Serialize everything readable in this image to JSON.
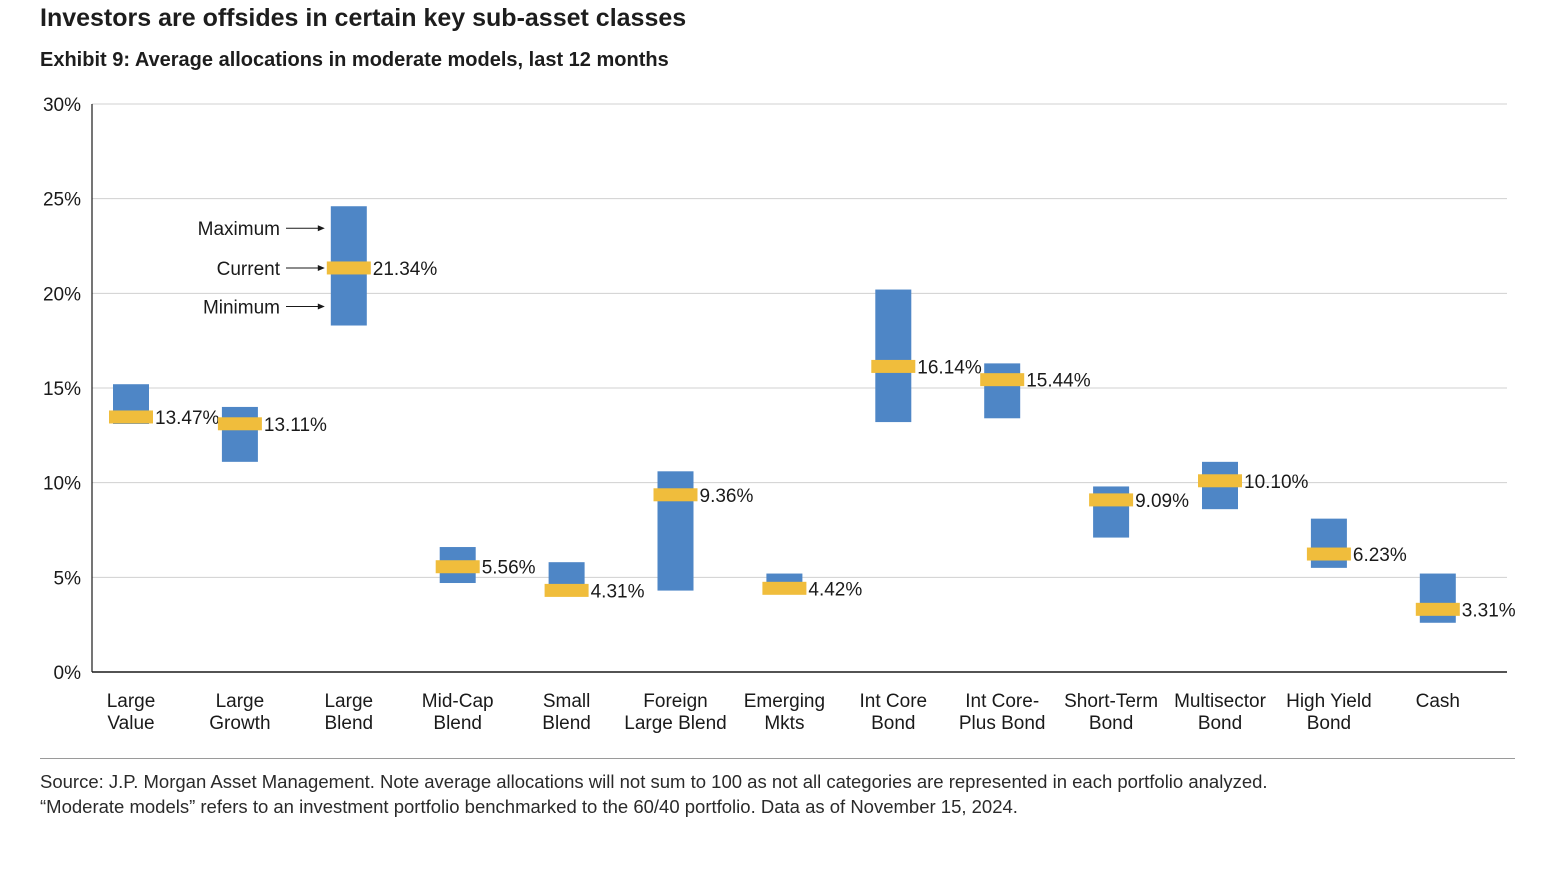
{
  "header": {
    "title": "Investors are offsides in certain key sub-asset classes",
    "subtitle": "Exhibit 9: Average allocations in moderate models, last 12 months"
  },
  "colors": {
    "range_bar": "#4e86c6",
    "current_marker": "#f0bd3c",
    "grid": "#d0d0d0",
    "axis": "#1a1a1a"
  },
  "chart_data": {
    "type": "floating-range-bar",
    "ylim": [
      0,
      30
    ],
    "yticks": [
      0,
      5,
      10,
      15,
      20,
      25,
      30
    ],
    "ytick_labels": [
      "0%",
      "5%",
      "10%",
      "15%",
      "20%",
      "25%",
      "30%"
    ],
    "grid": true,
    "legend_annotations": [
      "Maximum",
      "Current",
      "Minimum"
    ],
    "categories": [
      [
        "Large",
        "Value"
      ],
      [
        "Large",
        "Growth"
      ],
      [
        "Large",
        "Blend"
      ],
      [
        "Mid-Cap",
        "Blend"
      ],
      [
        "Small",
        "Blend"
      ],
      [
        "Foreign",
        "Large Blend"
      ],
      [
        "Emerging",
        "Mkts"
      ],
      [
        "Int Core",
        "Bond"
      ],
      [
        "Int Core-",
        "Plus Bond"
      ],
      [
        "Short-Term",
        "Bond"
      ],
      [
        "Multisector",
        "Bond"
      ],
      [
        "High Yield",
        "Bond"
      ],
      [
        "Cash",
        ""
      ]
    ],
    "max": [
      15.2,
      14.0,
      24.6,
      6.6,
      5.8,
      10.6,
      5.2,
      20.2,
      16.3,
      9.8,
      11.1,
      8.1,
      5.2
    ],
    "min": [
      13.1,
      11.1,
      18.3,
      4.7,
      4.3,
      4.3,
      4.3,
      13.2,
      13.4,
      7.1,
      8.6,
      5.5,
      2.6
    ],
    "current": [
      13.47,
      13.11,
      21.34,
      5.56,
      4.31,
      9.36,
      4.42,
      16.14,
      15.44,
      9.09,
      10.1,
      6.23,
      3.31
    ],
    "current_labels": [
      "13.47%",
      "13.11%",
      "21.34%",
      "5.56%",
      "4.31%",
      "9.36%",
      "4.42%",
      "16.14%",
      "15.44%",
      "9.09%",
      "10.10%",
      "6.23%",
      "3.31%"
    ]
  },
  "footer": {
    "source_line1": "Source: J.P. Morgan Asset Management. Note average allocations will not sum to 100 as not all categories are represented in each portfolio analyzed.",
    "source_line2": "“Moderate models” refers to an investment portfolio benchmarked to the 60/40 portfolio. Data as of November 15, 2024."
  }
}
